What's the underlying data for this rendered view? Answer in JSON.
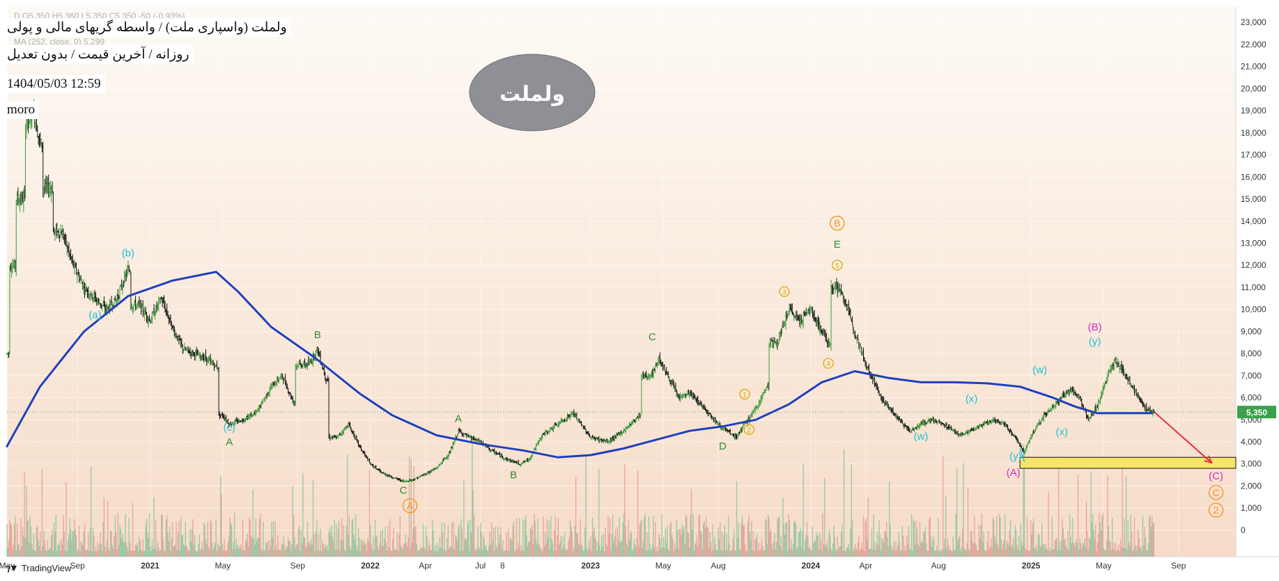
{
  "header": {
    "symbol_line_faded": "D  O5,350  H5,360  L5,350  C5,350  -50 (-0.93%)",
    "title": "ولملت (واسپاری ملت) / واسطه گریهای مالی و پولی",
    "subtitle": "روزانه / آخرین قیمت / بدون تعدیل",
    "ma_line_faded": "MA (252, close, 0)  5,299",
    "datetime": "1404/05/03 12:59",
    "author": "moro"
  },
  "watermark": {
    "text": "ولملت"
  },
  "footer": {
    "brand": "TradingView"
  },
  "colors": {
    "bg_top": "#fdfaf5",
    "bg_bottom": "#f6dcc8",
    "ma": "#1e3fbf",
    "candle_up": "#3a9a3a",
    "candle_down": "#111111",
    "volume_up": "#7fc19a",
    "volume_down": "#e8918c",
    "label_green": "#2e8b2e",
    "label_cyan": "#1ec0d6",
    "label_orange": "#f39212",
    "label_magenta": "#d62cc6",
    "label_gold": "#e0a800",
    "target_box": "#f7e56a",
    "arrow_red": "#e0303a",
    "price_tag": "#3aa14a"
  },
  "chart_data": {
    "type": "candlestick",
    "symbol": "ولملت",
    "y_axis": {
      "ticks": [
        "23,000",
        "22,000",
        "21,000",
        "20,000",
        "19,000",
        "18,000",
        "17,000",
        "16,000",
        "15,000",
        "14,000",
        "13,000",
        "12,000",
        "11,000",
        "10,000",
        "9,000",
        "8,000",
        "7,000",
        "6,000",
        "5,000",
        "4,000",
        "3,000",
        "2,000",
        "1,000",
        "0"
      ],
      "tick_values": [
        23000,
        22000,
        21000,
        20000,
        19000,
        18000,
        17000,
        16000,
        15000,
        14000,
        13000,
        12000,
        11000,
        10000,
        9000,
        8000,
        7000,
        6000,
        5000,
        4000,
        3000,
        2000,
        1000,
        0
      ],
      "ylim": [
        -1200,
        23700
      ]
    },
    "x_axis": {
      "range": [
        2020.35,
        2025.93
      ],
      "ticks": [
        {
          "label": "May",
          "t": 2020.35,
          "bold": false
        },
        {
          "label": "Sep",
          "t": 2020.67,
          "bold": false
        },
        {
          "label": "2021",
          "t": 2021.0,
          "bold": true
        },
        {
          "label": "May",
          "t": 2021.33,
          "bold": false
        },
        {
          "label": "Sep",
          "t": 2021.67,
          "bold": false
        },
        {
          "label": "2022",
          "t": 2022.0,
          "bold": true
        },
        {
          "label": "Apr",
          "t": 2022.25,
          "bold": false
        },
        {
          "label": "Jul",
          "t": 2022.5,
          "bold": false
        },
        {
          "label": "8",
          "t": 2022.6,
          "bold": false
        },
        {
          "label": "2023",
          "t": 2023.0,
          "bold": true
        },
        {
          "label": "May",
          "t": 2023.33,
          "bold": false
        },
        {
          "label": "Aug",
          "t": 2023.58,
          "bold": false
        },
        {
          "label": "2024",
          "t": 2024.0,
          "bold": true
        },
        {
          "label": "Apr",
          "t": 2024.25,
          "bold": false
        },
        {
          "label": "Aug",
          "t": 2024.58,
          "bold": false
        },
        {
          "label": "2025",
          "t": 2025.0,
          "bold": true
        },
        {
          "label": "May",
          "t": 2025.33,
          "bold": false
        },
        {
          "label": "Sep",
          "t": 2025.67,
          "bold": false
        }
      ]
    },
    "last_price": {
      "label": "5,350",
      "value": 5350
    },
    "price_path": [
      [
        2020.35,
        8000
      ],
      [
        2020.38,
        12000
      ],
      [
        2020.42,
        15000
      ],
      [
        2020.45,
        18500
      ],
      [
        2020.47,
        19000
      ],
      [
        2020.5,
        17500
      ],
      [
        2020.55,
        15500
      ],
      [
        2020.6,
        13500
      ],
      [
        2020.65,
        12000
      ],
      [
        2020.7,
        11000
      ],
      [
        2020.75,
        10500
      ],
      [
        2020.8,
        10000
      ],
      [
        2020.85,
        10500
      ],
      [
        2020.9,
        11800
      ],
      [
        2020.95,
        10200
      ],
      [
        2021.0,
        9500
      ],
      [
        2021.05,
        10500
      ],
      [
        2021.1,
        9200
      ],
      [
        2021.15,
        8200
      ],
      [
        2021.2,
        8000
      ],
      [
        2021.25,
        7800
      ],
      [
        2021.3,
        7400
      ],
      [
        2021.33,
        5200
      ],
      [
        2021.36,
        4800
      ],
      [
        2021.42,
        5000
      ],
      [
        2021.48,
        5300
      ],
      [
        2021.55,
        6500
      ],
      [
        2021.6,
        7000
      ],
      [
        2021.65,
        5800
      ],
      [
        2021.72,
        7500
      ],
      [
        2021.76,
        8200
      ],
      [
        2021.8,
        6800
      ],
      [
        2021.85,
        4200
      ],
      [
        2021.9,
        4800
      ],
      [
        2021.95,
        3800
      ],
      [
        2022.0,
        3000
      ],
      [
        2022.05,
        2600
      ],
      [
        2022.1,
        2400
      ],
      [
        2022.15,
        2200
      ],
      [
        2022.2,
        2300
      ],
      [
        2022.3,
        2800
      ],
      [
        2022.36,
        3500
      ],
      [
        2022.4,
        4500
      ],
      [
        2022.45,
        4200
      ],
      [
        2022.5,
        4000
      ],
      [
        2022.55,
        3600
      ],
      [
        2022.62,
        3200
      ],
      [
        2022.68,
        3000
      ],
      [
        2022.72,
        3200
      ],
      [
        2022.78,
        4300
      ],
      [
        2022.85,
        4800
      ],
      [
        2022.92,
        5300
      ],
      [
        2023.0,
        4200
      ],
      [
        2023.08,
        4000
      ],
      [
        2023.15,
        4500
      ],
      [
        2023.22,
        5200
      ],
      [
        2023.28,
        7000
      ],
      [
        2023.31,
        7800
      ],
      [
        2023.35,
        7000
      ],
      [
        2023.4,
        6000
      ],
      [
        2023.45,
        6200
      ],
      [
        2023.52,
        5500
      ],
      [
        2023.58,
        4800
      ],
      [
        2023.63,
        4400
      ],
      [
        2023.66,
        4200
      ],
      [
        2023.7,
        4800
      ],
      [
        2023.75,
        5500
      ],
      [
        2023.8,
        6500
      ],
      [
        2023.85,
        8500
      ],
      [
        2023.9,
        10000
      ],
      [
        2023.95,
        9500
      ],
      [
        2024.0,
        10000
      ],
      [
        2024.05,
        9000
      ],
      [
        2024.08,
        8500
      ],
      [
        2024.12,
        11000
      ],
      [
        2024.15,
        10500
      ],
      [
        2024.2,
        9000
      ],
      [
        2024.25,
        7500
      ],
      [
        2024.32,
        6000
      ],
      [
        2024.4,
        5000
      ],
      [
        2024.45,
        4500
      ],
      [
        2024.5,
        4800
      ],
      [
        2024.55,
        5000
      ],
      [
        2024.62,
        4700
      ],
      [
        2024.68,
        4300
      ],
      [
        2024.75,
        4600
      ],
      [
        2024.82,
        5000
      ],
      [
        2024.88,
        4800
      ],
      [
        2024.93,
        4200
      ],
      [
        2024.97,
        3500
      ],
      [
        2025.0,
        4300
      ],
      [
        2025.06,
        5200
      ],
      [
        2025.12,
        5800
      ],
      [
        2025.18,
        6400
      ],
      [
        2025.22,
        6000
      ],
      [
        2025.26,
        5000
      ],
      [
        2025.3,
        5600
      ],
      [
        2025.33,
        6500
      ],
      [
        2025.38,
        7700
      ],
      [
        2025.42,
        7200
      ],
      [
        2025.46,
        6500
      ],
      [
        2025.5,
        5800
      ],
      [
        2025.53,
        5400
      ],
      [
        2025.56,
        5350
      ]
    ],
    "moving_average": {
      "name": "MA (252, close, 0)",
      "points": [
        [
          2020.35,
          3800
        ],
        [
          2020.5,
          6500
        ],
        [
          2020.7,
          9000
        ],
        [
          2020.9,
          10600
        ],
        [
          2021.1,
          11300
        ],
        [
          2021.25,
          11600
        ],
        [
          2021.3,
          11700
        ],
        [
          2021.4,
          10800
        ],
        [
          2021.55,
          9200
        ],
        [
          2021.75,
          7800
        ],
        [
          2021.95,
          6200
        ],
        [
          2022.1,
          5200
        ],
        [
          2022.3,
          4300
        ],
        [
          2022.5,
          3900
        ],
        [
          2022.7,
          3600
        ],
        [
          2022.85,
          3300
        ],
        [
          2023.0,
          3400
        ],
        [
          2023.15,
          3700
        ],
        [
          2023.3,
          4100
        ],
        [
          2023.45,
          4500
        ],
        [
          2023.6,
          4700
        ],
        [
          2023.75,
          5000
        ],
        [
          2023.9,
          5700
        ],
        [
          2024.05,
          6700
        ],
        [
          2024.2,
          7200
        ],
        [
          2024.35,
          6900
        ],
        [
          2024.5,
          6700
        ],
        [
          2024.65,
          6700
        ],
        [
          2024.8,
          6650
        ],
        [
          2024.95,
          6500
        ],
        [
          2025.1,
          6000
        ],
        [
          2025.2,
          5600
        ],
        [
          2025.3,
          5300
        ],
        [
          2025.4,
          5300
        ],
        [
          2025.55,
          5300
        ]
      ]
    },
    "annotations": [
      {
        "text": "(b)",
        "t": 2020.9,
        "y": 12400,
        "color": "label_cyan"
      },
      {
        "text": "(a)",
        "t": 2020.75,
        "y": 9600,
        "color": "label_cyan"
      },
      {
        "text": "(c)",
        "t": 2021.36,
        "y": 4500,
        "color": "label_cyan"
      },
      {
        "text": "A",
        "t": 2021.36,
        "y": 3850,
        "color": "label_green"
      },
      {
        "text": "B",
        "t": 2021.76,
        "y": 8700,
        "color": "label_green"
      },
      {
        "text": "C",
        "t": 2022.15,
        "y": 1650,
        "color": "label_green"
      },
      {
        "text": "A",
        "t": 2022.18,
        "y": 950,
        "color": "label_orange",
        "circled": true
      },
      {
        "text": "A",
        "t": 2022.4,
        "y": 4900,
        "color": "label_green"
      },
      {
        "text": "B",
        "t": 2022.65,
        "y": 2350,
        "color": "label_green"
      },
      {
        "text": "C",
        "t": 2023.28,
        "y": 8600,
        "color": "label_green"
      },
      {
        "text": "D",
        "t": 2023.6,
        "y": 3650,
        "color": "label_green"
      },
      {
        "text": "1",
        "t": 2023.7,
        "y": 6000,
        "color": "label_gold",
        "circled": true
      },
      {
        "text": "2",
        "t": 2023.72,
        "y": 4400,
        "color": "label_gold",
        "circled": true
      },
      {
        "text": "3",
        "t": 2023.88,
        "y": 10650,
        "color": "label_gold",
        "circled": true
      },
      {
        "text": "4",
        "t": 2024.08,
        "y": 7400,
        "color": "label_gold",
        "circled": true
      },
      {
        "text": "5",
        "t": 2024.12,
        "y": 11850,
        "color": "label_gold",
        "circled": true
      },
      {
        "text": "E",
        "t": 2024.12,
        "y": 12800,
        "color": "label_green"
      },
      {
        "text": "B",
        "t": 2024.12,
        "y": 13750,
        "color": "label_orange",
        "circled": true
      },
      {
        "text": "(w)",
        "t": 2024.5,
        "y": 4100,
        "color": "label_cyan"
      },
      {
        "text": "(x)",
        "t": 2024.73,
        "y": 5800,
        "color": "label_cyan"
      },
      {
        "text": "(y)",
        "t": 2024.93,
        "y": 3200,
        "color": "label_cyan"
      },
      {
        "text": "(A)",
        "t": 2024.92,
        "y": 2450,
        "color": "label_magenta"
      },
      {
        "text": "(w)",
        "t": 2025.04,
        "y": 7100,
        "color": "label_cyan"
      },
      {
        "text": "(x)",
        "t": 2025.14,
        "y": 4300,
        "color": "label_cyan"
      },
      {
        "text": "(y)",
        "t": 2025.29,
        "y": 8400,
        "color": "label_cyan"
      },
      {
        "text": "(B)",
        "t": 2025.29,
        "y": 9050,
        "color": "label_magenta"
      },
      {
        "text": "(C)",
        "t": 2025.84,
        "y": 2300,
        "color": "label_magenta"
      },
      {
        "text": "C",
        "t": 2025.84,
        "y": 1550,
        "color": "label_orange",
        "circled": true
      },
      {
        "text": "2",
        "t": 2025.84,
        "y": 750,
        "color": "label_orange",
        "circled": true
      }
    ],
    "target_zone": {
      "t0": 2024.95,
      "t1": 2025.93,
      "y0": 2800,
      "y1": 3300
    },
    "arrow": {
      "from": [
        2025.56,
        5350
      ],
      "to": [
        2025.82,
        3050
      ]
    },
    "volume_scale": {
      "max_fraction": 1
    }
  }
}
